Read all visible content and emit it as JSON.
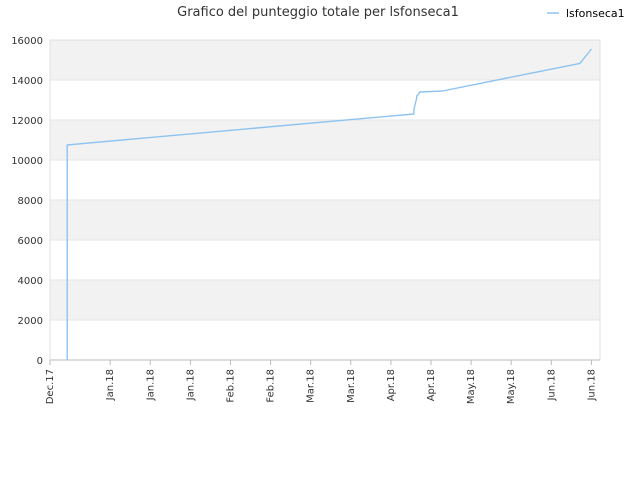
{
  "chart_data": {
    "type": "line",
    "title": "Grafico del punteggio totale per lsfonseca1",
    "xlabel": "",
    "ylabel": "",
    "ylim": [
      0,
      16000
    ],
    "yticks": [
      0,
      2000,
      4000,
      6000,
      8000,
      10000,
      12000,
      14000,
      16000
    ],
    "ytick_labels": [
      "0",
      "2000",
      "4000",
      "6000",
      "8000",
      "10000",
      "12000",
      "14000",
      "16000"
    ],
    "xlim": [
      "2017-12-17",
      "2018-06-27"
    ],
    "xticks": [
      "2017-12-17",
      "2018-01-07",
      "2018-01-21",
      "2018-02-04",
      "2018-02-18",
      "2018-03-04",
      "2018-03-18",
      "2018-04-01",
      "2018-04-15",
      "2018-04-29",
      "2018-05-13",
      "2018-05-27",
      "2018-06-10",
      "2018-06-24"
    ],
    "xtick_labels": [
      "Dec.17",
      "Jan.18",
      "Jan.18",
      "Jan.18",
      "Feb.18",
      "Feb.18",
      "Mar.18",
      "Mar.18",
      "Apr.18",
      "Apr.18",
      "May.18",
      "May.18",
      "Jun.18",
      "Jun.18"
    ],
    "grid": true,
    "banded_background": true,
    "legend_position": "top-right",
    "colors": {
      "line": "#8dc3f0",
      "band": "#f2f2f2",
      "grid": "#e6e6e6",
      "axis": "#bbbbbb"
    },
    "series": [
      {
        "name": "lsfonseca1",
        "points": [
          [
            "2017-12-23",
            0
          ],
          [
            "2017-12-23",
            10750
          ],
          [
            "2017-12-25",
            10780
          ],
          [
            "2018-04-23",
            12300
          ],
          [
            "2018-04-23",
            12500
          ],
          [
            "2018-04-24",
            13100
          ],
          [
            "2018-04-24",
            13200
          ],
          [
            "2018-04-25",
            13350
          ],
          [
            "2018-04-25",
            13400
          ],
          [
            "2018-05-03",
            13450
          ],
          [
            "2018-06-20",
            14830
          ],
          [
            "2018-06-24",
            15550
          ]
        ]
      }
    ]
  }
}
